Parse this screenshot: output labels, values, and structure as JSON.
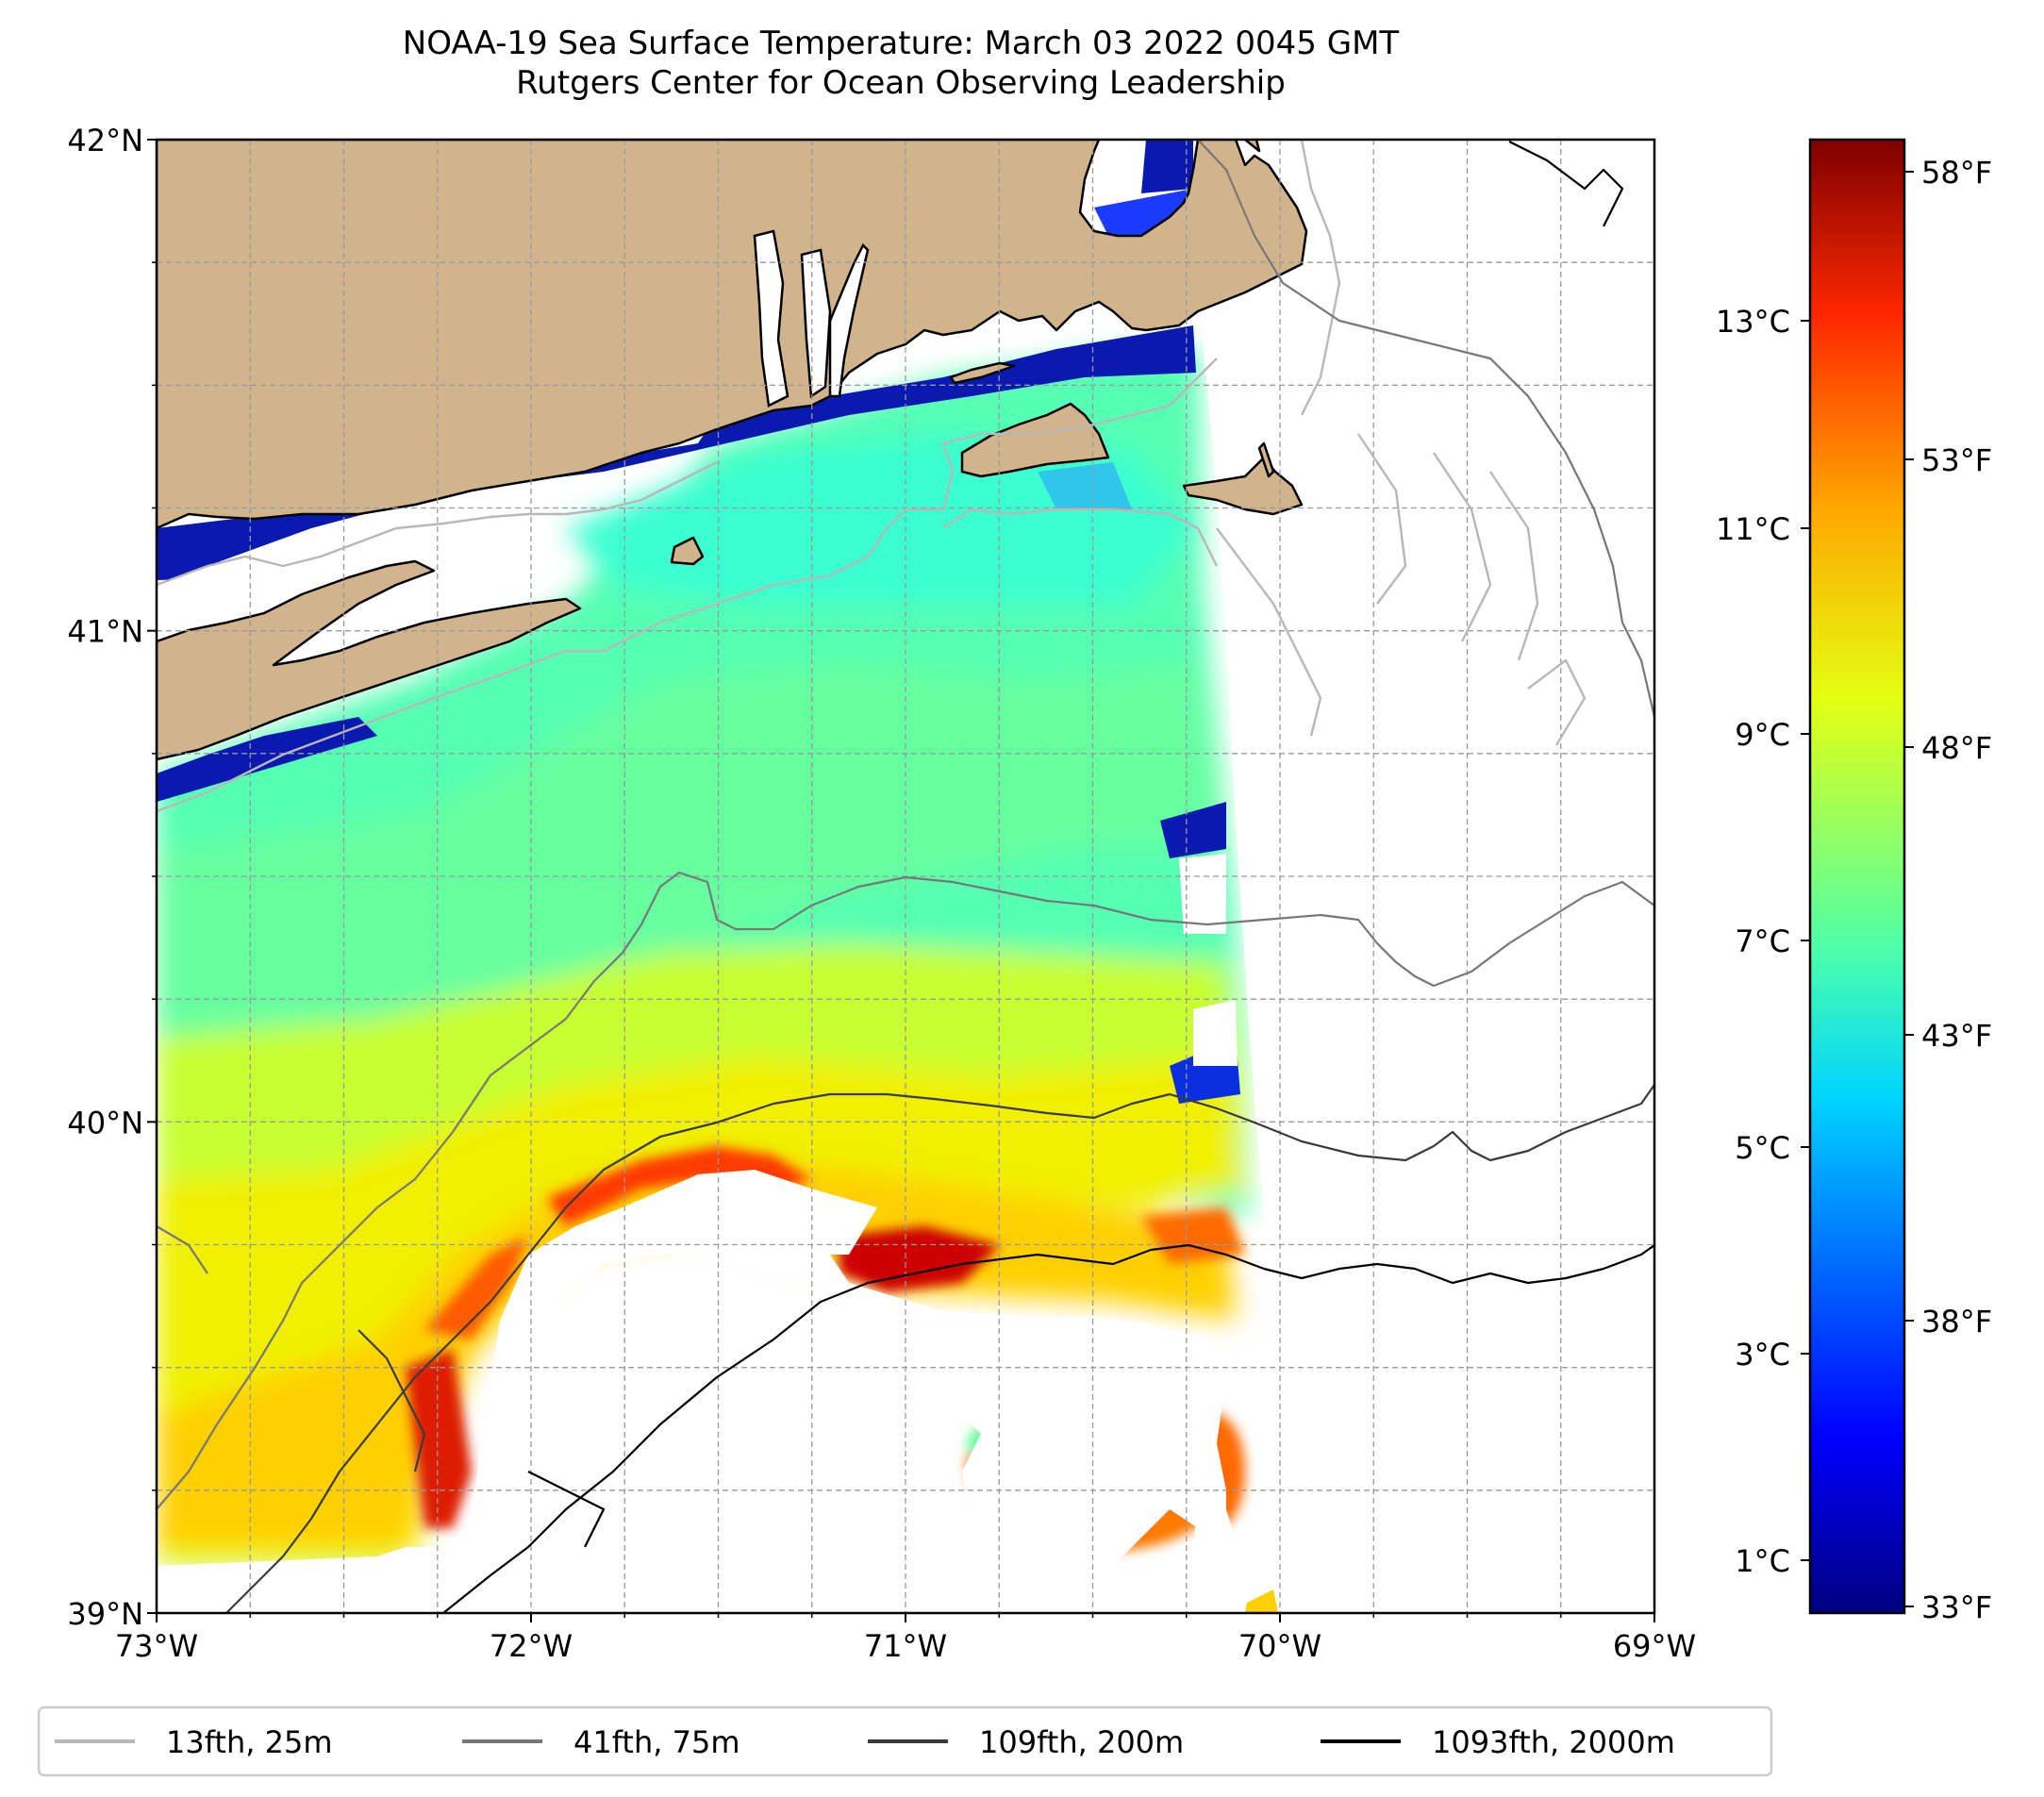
{
  "title": {
    "line1": "NOAA-19 Sea Surface Temperature: March 03 2022 0045 GMT",
    "line2": "Rutgers Center for Ocean Observing Leadership"
  },
  "map": {
    "lat_ticks": [
      "42°N",
      "41°N",
      "40°N",
      "39°N"
    ],
    "lon_ticks": [
      "73°W",
      "72°W",
      "71°W",
      "70°W",
      "69°W"
    ],
    "lat_range": [
      39,
      42
    ],
    "lon_range": [
      -73,
      -69
    ],
    "land_color": "#d2b48c",
    "no_data_color": "#ffffff",
    "grid": "dashed"
  },
  "colorbar": {
    "celsius_ticks": [
      "13°C",
      "11°C",
      "9°C",
      "7°C",
      "5°C",
      "3°C",
      "1°C"
    ],
    "fahrenheit_ticks": [
      "58°F",
      "53°F",
      "48°F",
      "43°F",
      "38°F",
      "33°F"
    ],
    "colormap": "jet"
  },
  "legend": {
    "items": [
      {
        "label": "13fth, 25m",
        "color": "#b8b8b8"
      },
      {
        "label": "41fth, 75m",
        "color": "#777777"
      },
      {
        "label": "109fth, 200m",
        "color": "#3a3a3a"
      },
      {
        "label": "1093fth, 2000m",
        "color": "#000000"
      }
    ]
  }
}
